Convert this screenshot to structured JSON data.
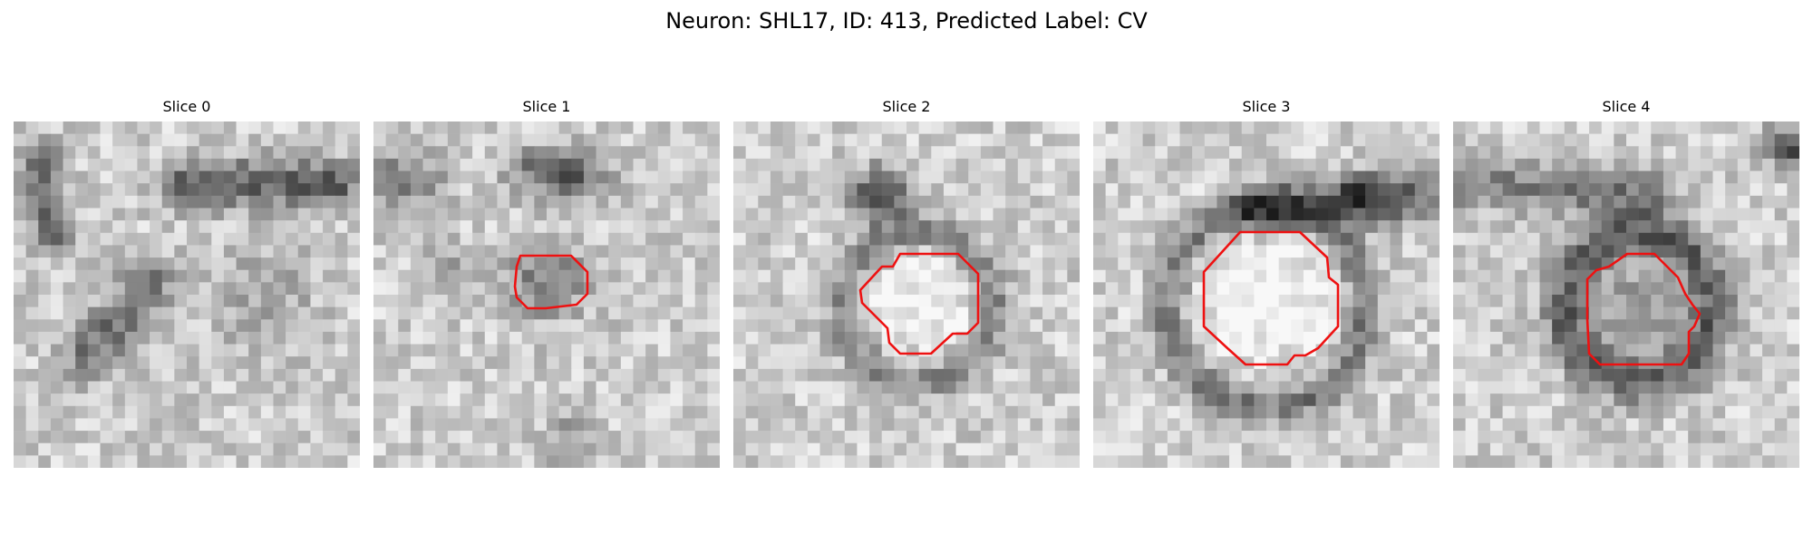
{
  "figure": {
    "title": "Neuron: SHL17, ID: 413, Predicted Label: CV"
  },
  "panels": [
    {
      "title": "Slice 0",
      "has_outline": false
    },
    {
      "title": "Slice 1",
      "has_outline": true
    },
    {
      "title": "Slice 2",
      "has_outline": true
    },
    {
      "title": "Slice 3",
      "has_outline": true
    },
    {
      "title": "Slice 4",
      "has_outline": true
    }
  ],
  "colors": {
    "outline": "#ee1111",
    "background": "#ffffff"
  },
  "image_style": "grayscale-microscopy-slice"
}
